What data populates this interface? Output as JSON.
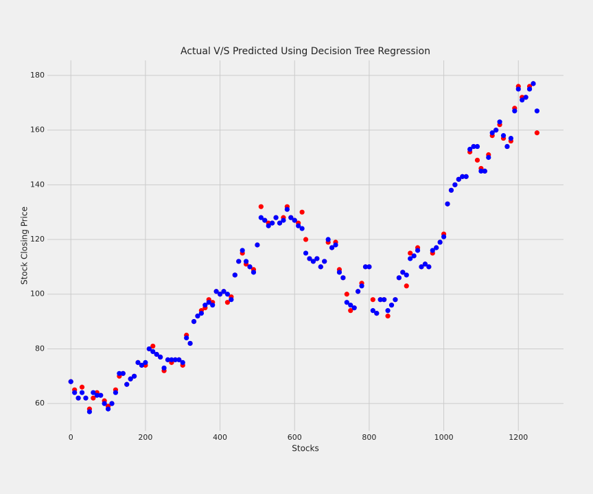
{
  "chart_data": {
    "type": "scatter",
    "title": "Actual V/S Predicted Using Decision Tree Regression",
    "x_label": "Stocks",
    "y_label": "Stock Closing Price",
    "x": [
      0,
      10,
      20,
      30,
      40,
      50,
      60,
      70,
      80,
      90,
      100,
      110,
      120,
      130,
      140,
      150,
      160,
      170,
      180,
      190,
      200,
      210,
      220,
      230,
      240,
      250,
      260,
      270,
      280,
      290,
      300,
      310,
      320,
      330,
      340,
      350,
      360,
      370,
      380,
      390,
      400,
      410,
      420,
      430,
      440,
      450,
      460,
      470,
      480,
      490,
      500,
      510,
      520,
      530,
      540,
      550,
      560,
      570,
      580,
      590,
      600,
      610,
      620,
      630,
      640,
      650,
      660,
      670,
      680,
      690,
      700,
      710,
      720,
      730,
      740,
      750,
      760,
      770,
      780,
      790,
      800,
      810,
      820,
      830,
      840,
      850,
      860,
      870,
      880,
      890,
      900,
      910,
      920,
      930,
      940,
      950,
      960,
      970,
      980,
      990,
      1000,
      1010,
      1020,
      1030,
      1040,
      1050,
      1060,
      1070,
      1080,
      1090,
      1100,
      1110,
      1120,
      1130,
      1140,
      1150,
      1160,
      1170,
      1180,
      1190,
      1200,
      1210,
      1220,
      1230,
      1240,
      1250
    ],
    "series": [
      {
        "color": "#ff0000",
        "values": [
          68,
          65,
          62,
          66,
          62,
          58,
          62,
          64,
          63,
          61,
          59,
          60,
          65,
          70,
          71,
          67,
          69,
          70,
          75,
          74,
          74,
          80,
          81,
          78,
          77,
          72,
          76,
          75,
          76,
          76,
          74,
          85,
          82,
          90,
          92,
          94,
          95,
          98,
          97,
          101,
          100,
          101,
          97,
          99,
          107,
          112,
          115,
          111,
          110,
          109,
          118,
          132,
          127,
          126,
          126,
          128,
          126,
          128,
          132,
          128,
          127,
          126,
          130,
          120,
          113,
          112,
          113,
          110,
          112,
          119,
          117,
          119,
          109,
          106,
          100,
          94,
          95,
          101,
          104,
          110,
          110,
          98,
          93,
          98,
          98,
          92,
          96,
          98,
          106,
          108,
          103,
          115,
          114,
          117,
          110,
          111,
          110,
          115,
          117,
          119,
          122,
          133,
          138,
          140,
          142,
          143,
          143,
          152,
          154,
          149,
          146,
          145,
          151,
          158,
          160,
          162,
          157,
          154,
          156,
          168,
          176,
          172,
          172,
          176,
          177,
          159
        ]
      },
      {
        "color": "#0000ff",
        "values": [
          68,
          64,
          62,
          64,
          62,
          57,
          64,
          63,
          63,
          60,
          58,
          60,
          64,
          71,
          71,
          67,
          69,
          70,
          75,
          74,
          75,
          80,
          79,
          78,
          77,
          73,
          76,
          76,
          76,
          76,
          75,
          84,
          82,
          90,
          92,
          93,
          96,
          97,
          96,
          101,
          100,
          101,
          100,
          98,
          107,
          112,
          116,
          112,
          110,
          108,
          118,
          128,
          127,
          125,
          126,
          128,
          126,
          127,
          131,
          128,
          127,
          125,
          124,
          115,
          113,
          112,
          113,
          110,
          112,
          120,
          117,
          118,
          108,
          106,
          97,
          96,
          95,
          101,
          103,
          110,
          110,
          94,
          93,
          98,
          98,
          94,
          96,
          98,
          106,
          108,
          107,
          113,
          114,
          116,
          110,
          111,
          110,
          116,
          117,
          119,
          121,
          133,
          138,
          140,
          142,
          143,
          143,
          153,
          154,
          154,
          145,
          145,
          150,
          159,
          160,
          163,
          158,
          154,
          157,
          167,
          175,
          171,
          172,
          175,
          177,
          167
        ]
      }
    ],
    "xlim": [
      -63,
      1321
    ],
    "ylim": [
      50,
      185.5
    ],
    "xticks": [
      0,
      200,
      400,
      600,
      800,
      1000,
      1200
    ],
    "yticks": [
      60,
      80,
      100,
      120,
      140,
      160,
      180
    ],
    "grid": true
  }
}
